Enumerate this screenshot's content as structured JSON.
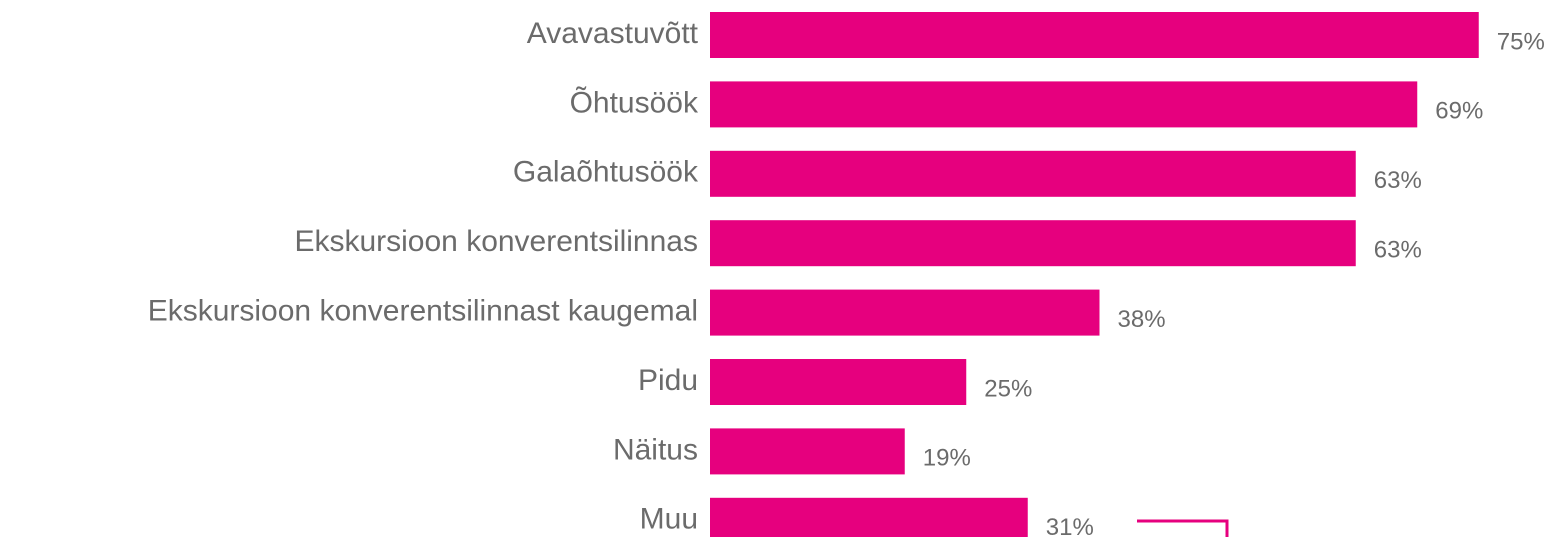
{
  "chart_data": {
    "type": "bar",
    "orientation": "horizontal",
    "categories": [
      "Avavastuvõtt",
      "Õhtusöök",
      "Galaõhtusöök",
      "Ekskursioon konverentsilinnas",
      "Ekskursioon konverentsilinnast kaugemal",
      "Pidu",
      "Näitus",
      "Muu"
    ],
    "values": [
      75,
      69,
      63,
      63,
      38,
      25,
      19,
      31
    ],
    "value_labels": [
      "75%",
      "69%",
      "63%",
      "63%",
      "38%",
      "25%",
      "19%",
      "31%"
    ],
    "color": "#e6007e"
  }
}
